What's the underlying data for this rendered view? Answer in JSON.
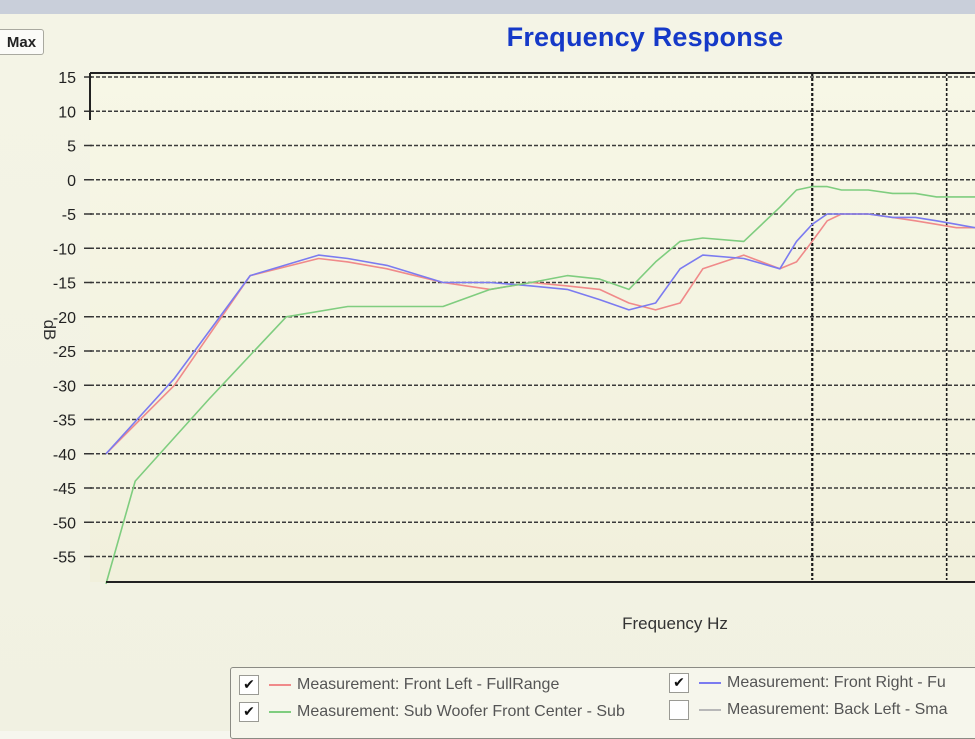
{
  "toolbar": {
    "max_label": "Max"
  },
  "chart_data": {
    "type": "line",
    "title": "Frequency Response",
    "xlabel": "Frequency Hz",
    "ylabel": "dB",
    "ylim": [
      -60,
      15
    ],
    "yticks": [
      15,
      10,
      5,
      0,
      -5,
      -10,
      -15,
      -20,
      -25,
      -30,
      -35,
      -40,
      -45,
      -50,
      -55
    ],
    "x_scale": "log",
    "xlim": [
      10,
      170
    ],
    "x_major_gridlines": [
      100
    ],
    "grid": true,
    "legend_position": "bottom",
    "series": [
      {
        "name": "Measurement: Front Left - FullRange",
        "color": "#f08a8a",
        "x": [
          10,
          12.5,
          16,
          20,
          22,
          25,
          30,
          35,
          40,
          45,
          50,
          55,
          60,
          65,
          70,
          80,
          90,
          95,
          100,
          105,
          110,
          120,
          130,
          140,
          150,
          160,
          170
        ],
        "y": [
          -40,
          -30,
          -14,
          -11.5,
          -12,
          -13,
          -15,
          -16,
          -15,
          -15.5,
          -16,
          -18,
          -19,
          -18,
          -13,
          -11,
          -13,
          -12,
          -9,
          -6,
          -5,
          -5,
          -5.5,
          -6,
          -6.5,
          -7,
          -7
        ]
      },
      {
        "name": "Measurement: Front Right - Fu",
        "color": "#7b7bf0",
        "x": [
          10,
          12.5,
          16,
          20,
          22,
          25,
          30,
          35,
          40,
          45,
          50,
          55,
          60,
          65,
          70,
          80,
          90,
          95,
          100,
          105,
          110,
          120,
          130,
          140,
          150,
          160,
          170
        ],
        "y": [
          -40,
          -29,
          -14,
          -11,
          -11.5,
          -12.5,
          -15,
          -15,
          -15.5,
          -16,
          -17.5,
          -19,
          -18,
          -13,
          -11,
          -11.5,
          -13,
          -9,
          -6.5,
          -5,
          -5,
          -5,
          -5.5,
          -5.5,
          -6,
          -6.5,
          -7
        ]
      },
      {
        "name": "Measurement: Sub Woofer Front Center - Sub",
        "color": "#7fcd7f",
        "x": [
          10,
          11,
          14,
          18,
          22,
          25,
          30,
          35,
          40,
          45,
          50,
          55,
          60,
          65,
          70,
          80,
          90,
          95,
          100,
          105,
          110,
          120,
          130,
          140,
          150,
          160,
          170
        ],
        "y": [
          -59,
          -44,
          -32,
          -20,
          -18.5,
          -18.5,
          -18.5,
          -16,
          -15,
          -14,
          -14.5,
          -16,
          -12,
          -9,
          -8.5,
          -9,
          -4,
          -1.5,
          -1,
          -1,
          -1.5,
          -1.5,
          -2,
          -2,
          -2.5,
          -2.5,
          -2.5
        ]
      },
      {
        "name": "Measurement: Back Left - Sma",
        "color": "#b8b8b8",
        "x": [],
        "y": []
      }
    ]
  },
  "legend": {
    "items": [
      {
        "label": "Measurement: Front Left - FullRange",
        "checked": true,
        "check_glyph": "✔",
        "color": "#f08a8a"
      },
      {
        "label": "Measurement: Front Right - Fu",
        "checked": true,
        "check_glyph": "✔",
        "color": "#7b7bf0"
      },
      {
        "label": "Measurement: Sub Woofer Front Center - Sub",
        "checked": true,
        "check_glyph": "✔",
        "color": "#7fcd7f"
      },
      {
        "label": "Measurement: Back Left - Sma",
        "checked": false,
        "check_glyph": "",
        "color": "#b8b8b8"
      }
    ]
  }
}
